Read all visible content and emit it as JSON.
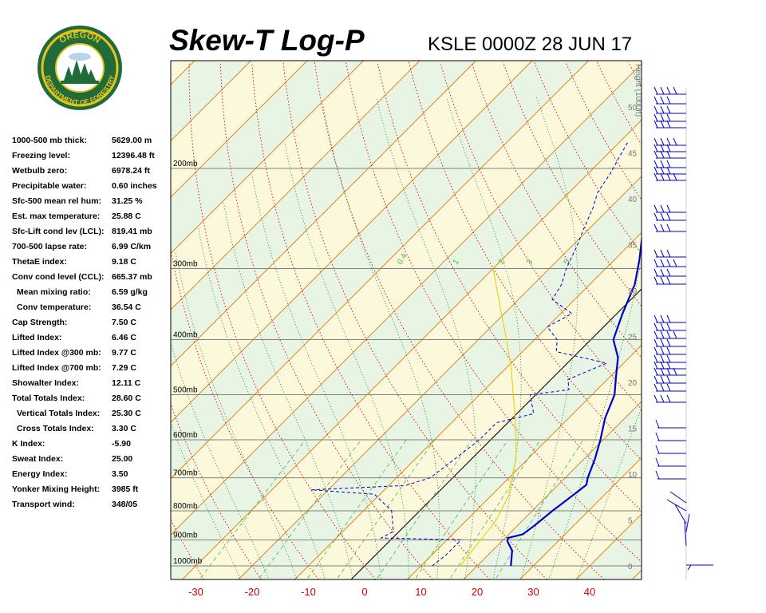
{
  "header": {
    "title": "Skew-T Log-P",
    "station": "KSLE 0000Z 28 JUN 17"
  },
  "logo": {
    "text_top": "OREGON",
    "text_bottom": "DEPARTMENT OF FORESTRY"
  },
  "indices": [
    {
      "label": "1000-500 mb thick:",
      "value": "5629.00 m"
    },
    {
      "label": "Freezing level:",
      "value": "12396.48 ft"
    },
    {
      "label": "Wetbulb zero:",
      "value": "6978.24 ft"
    },
    {
      "label": "Precipitable water:",
      "value": "0.60 inches"
    },
    {
      "label": "Sfc-500 mean rel hum:",
      "value": "31.25 %"
    },
    {
      "label": "Est. max temperature:",
      "value": "25.88 C"
    },
    {
      "label": "Sfc-Lift cond lev (LCL):",
      "value": "819.41 mb"
    },
    {
      "label": "700-500 lapse rate:",
      "value": "6.99 C/km"
    },
    {
      "label": "ThetaE index:",
      "value": "9.18 C"
    },
    {
      "label": "Conv cond level (CCL):",
      "value": "665.37 mb"
    },
    {
      "label": "Mean mixing ratio:",
      "value": "6.59 g/kg",
      "indent": true
    },
    {
      "label": "Conv temperature:",
      "value": "36.54 C",
      "indent": true
    },
    {
      "label": "Cap Strength:",
      "value": "7.50 C"
    },
    {
      "label": "Lifted Index:",
      "value": "6.46 C"
    },
    {
      "label": "Lifted Index @300 mb:",
      "value": "9.77 C"
    },
    {
      "label": "Lifted Index @700 mb:",
      "value": "7.29 C"
    },
    {
      "label": "Showalter Index:",
      "value": "12.11 C"
    },
    {
      "label": "Total Totals Index:",
      "value": "28.60 C"
    },
    {
      "label": "Vertical Totals Index:",
      "value": "25.30 C",
      "indent": true
    },
    {
      "label": "Cross Totals Index:",
      "value": "3.30 C",
      "indent": true
    },
    {
      "label": "K Index:",
      "value": "-5.90"
    },
    {
      "label": "Sweat Index:",
      "value": "25.00"
    },
    {
      "label": "Energy Index:",
      "value": "3.50"
    },
    {
      "label": "Yonker Mixing Height:",
      "value": "3985 ft"
    },
    {
      "label": "Transport wind:",
      "value": "348/05"
    }
  ],
  "chart_data": {
    "type": "line",
    "title": "Skew-T Log-P",
    "subtitle": "KSLE 0000Z 28 JUN 17",
    "x_axis": {
      "ticks": [
        -30,
        -20,
        -10,
        0,
        10,
        20,
        30,
        40
      ]
    },
    "y_axis": {
      "scale": "log",
      "range_mb": [
        1050,
        150
      ],
      "ticks": [
        "1000mb",
        "900mb",
        "800mb",
        "700mb",
        "600mb",
        "500mb",
        "400mb",
        "300mb",
        "200mb"
      ]
    },
    "height_axis": {
      "label": "Height (1000ft)",
      "ticks": [
        0,
        5,
        10,
        15,
        20,
        25,
        30,
        35,
        40,
        45,
        50
      ]
    },
    "mixing_ratio_labels": [
      "0.4",
      "1",
      "2",
      "3",
      "5"
    ],
    "colors": {
      "temperature": "#0000cc",
      "dewpoint": "#0000cc",
      "parcel": "#e6d200",
      "isotherm": "#e07a00",
      "dry_adiabat": "#dd0000",
      "moist_adiabat": "#007700",
      "mixing_ratio": "#44bb44",
      "isobar": "#808080",
      "band_green": "#e8f5e4",
      "band_yellow": "#fbf8dc",
      "axis_tick_text": "#cc0000"
    },
    "series": [
      {
        "values": [
          [
            26,
            1000
          ],
          [
            23.5,
            940
          ],
          [
            21,
            905
          ],
          [
            20.5,
            893
          ],
          [
            22.5,
            880
          ],
          [
            23,
            850
          ],
          [
            23.6,
            800
          ],
          [
            24.5,
            750
          ],
          [
            25,
            720
          ],
          [
            24,
            700
          ],
          [
            22,
            650
          ],
          [
            19.5,
            600
          ],
          [
            16.5,
            550
          ],
          [
            14,
            500
          ],
          [
            11.5,
            470
          ],
          [
            8,
            430
          ],
          [
            4,
            400
          ],
          [
            1,
            360
          ],
          [
            -2,
            320
          ],
          [
            -5.5,
            290
          ],
          [
            -9,
            265
          ],
          [
            -12,
            245
          ],
          [
            -13.5,
            228
          ],
          [
            -17,
            210
          ],
          [
            -17.5,
            200
          ],
          [
            -20,
            195
          ],
          [
            -21.5,
            185
          ]
        ]
      },
      {
        "values": [
          [
            12,
            1000
          ],
          [
            12.5,
            960
          ],
          [
            12.5,
            900
          ],
          [
            -2,
            893
          ],
          [
            -1,
            870
          ],
          [
            -5,
            800
          ],
          [
            -11,
            748
          ],
          [
            -23,
            735
          ],
          [
            -7,
            722
          ],
          [
            -4,
            700
          ],
          [
            -3,
            650
          ],
          [
            -2,
            600
          ],
          [
            -2,
            560
          ],
          [
            3,
            540
          ],
          [
            -1,
            500
          ],
          [
            5,
            490
          ],
          [
            3,
            470
          ],
          [
            7,
            440
          ],
          [
            -4,
            420
          ],
          [
            -6,
            400
          ],
          [
            -10,
            380
          ],
          [
            -8,
            360
          ],
          [
            -14,
            340
          ],
          [
            -15,
            320
          ],
          [
            -17,
            300
          ],
          [
            -19,
            275
          ],
          [
            -21,
            255
          ],
          [
            -23,
            235
          ],
          [
            -25,
            220
          ],
          [
            -26,
            205
          ],
          [
            -27.5,
            190
          ],
          [
            -28.5,
            180
          ]
        ]
      },
      {
        "values": [
          [
            17,
            1000
          ],
          [
            16.5,
            950
          ],
          [
            16,
            900
          ],
          [
            15.5,
            850
          ],
          [
            15,
            819
          ],
          [
            13,
            750
          ],
          [
            10.5,
            700
          ],
          [
            8,
            650
          ],
          [
            4.5,
            600
          ],
          [
            0.5,
            550
          ],
          [
            -4,
            500
          ],
          [
            -9,
            450
          ],
          [
            -15,
            400
          ],
          [
            -22,
            350
          ],
          [
            -30,
            300
          ]
        ]
      }
    ]
  }
}
